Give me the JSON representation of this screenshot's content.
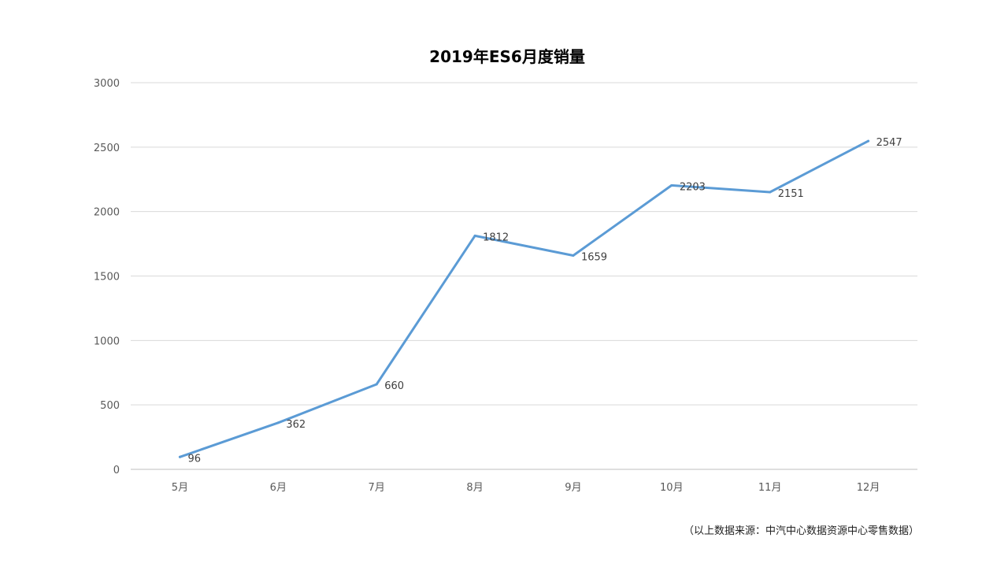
{
  "chart_data": {
    "type": "line",
    "title": "2019年ES6月度销量",
    "xlabel": "",
    "ylabel": "",
    "categories": [
      "5月",
      "6月",
      "7月",
      "8月",
      "9月",
      "10月",
      "11月",
      "12月"
    ],
    "series": [
      {
        "values": [
          96,
          362,
          660,
          1812,
          1659,
          2203,
          2151,
          2547
        ],
        "color": "#5b9bd5"
      }
    ],
    "ylim": [
      0,
      3000
    ],
    "yticks": [
      0,
      500,
      1000,
      1500,
      2000,
      2500,
      3000
    ],
    "grid": true,
    "legend": "none",
    "data_labels": true
  },
  "source_note": "（以上数据来源：中汽中心数据资源中心零售数据）"
}
